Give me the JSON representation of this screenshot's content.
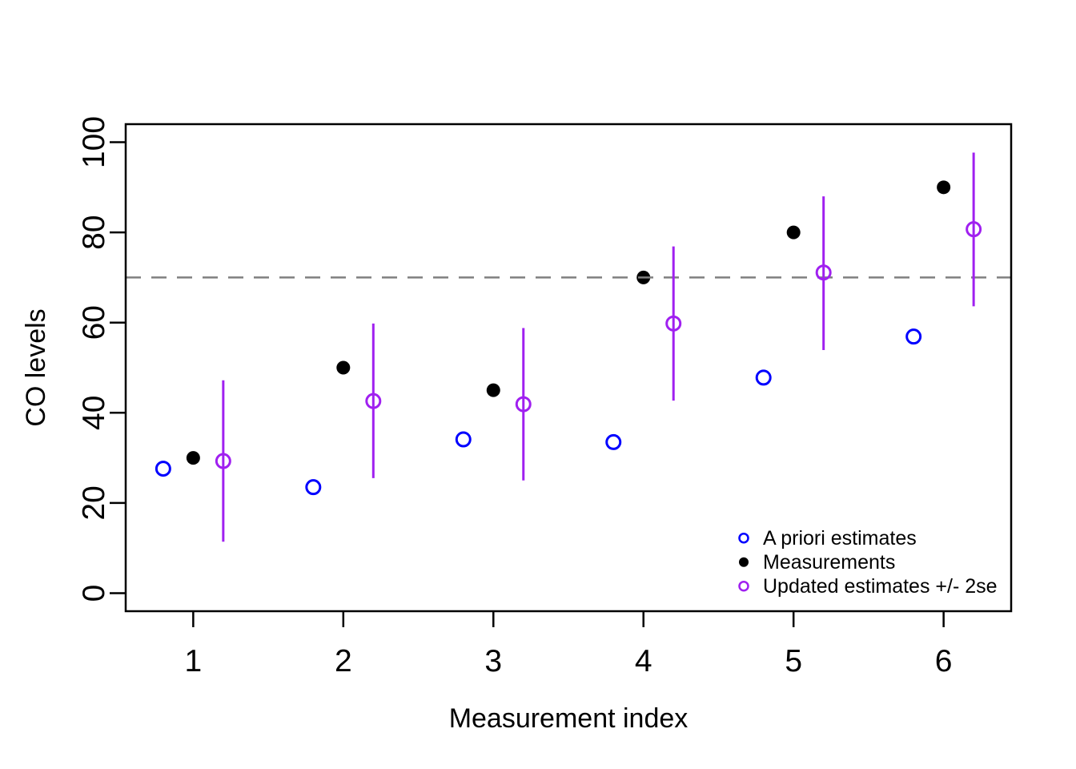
{
  "chart_data": {
    "type": "scatter",
    "title": "",
    "xlabel": "Measurement index",
    "ylabel": "CO levels",
    "xlim": [
      0.55,
      6.45
    ],
    "ylim": [
      -4,
      104
    ],
    "x_ticks": [
      1,
      2,
      3,
      4,
      5,
      6
    ],
    "y_ticks": [
      0,
      20,
      40,
      60,
      80,
      100
    ],
    "grid": false,
    "frame_color": "#000000",
    "reference_line": {
      "y": 70,
      "style": "dashed",
      "color": "#808080"
    },
    "legend": {
      "position": "bottom-right",
      "border": false
    },
    "series": [
      {
        "name": "A priori estimates",
        "marker": "open-circle",
        "color": "#0000ff",
        "x": [
          0.8,
          1.8,
          2.8,
          3.8,
          4.8,
          5.8
        ],
        "y": [
          27.6,
          23.5,
          34.1,
          33.5,
          47.8,
          56.9
        ]
      },
      {
        "name": "Measurements",
        "marker": "filled-circle",
        "color": "#000000",
        "x": [
          1,
          2,
          3,
          4,
          5,
          6
        ],
        "y": [
          30,
          50,
          45,
          70,
          80,
          90
        ]
      },
      {
        "name": "Updated estimates +/- 2se",
        "marker": "open-circle",
        "color": "#a020f0",
        "x": [
          1.2,
          2.2,
          3.2,
          4.2,
          5.2,
          6.2
        ],
        "y": [
          29.3,
          42.6,
          41.9,
          59.8,
          71.1,
          80.7
        ],
        "err_low": [
          11.4,
          25.5,
          25.0,
          42.7,
          53.9,
          63.6
        ],
        "err_high": [
          47.2,
          59.8,
          58.8,
          76.9,
          88.0,
          97.7
        ]
      }
    ]
  }
}
